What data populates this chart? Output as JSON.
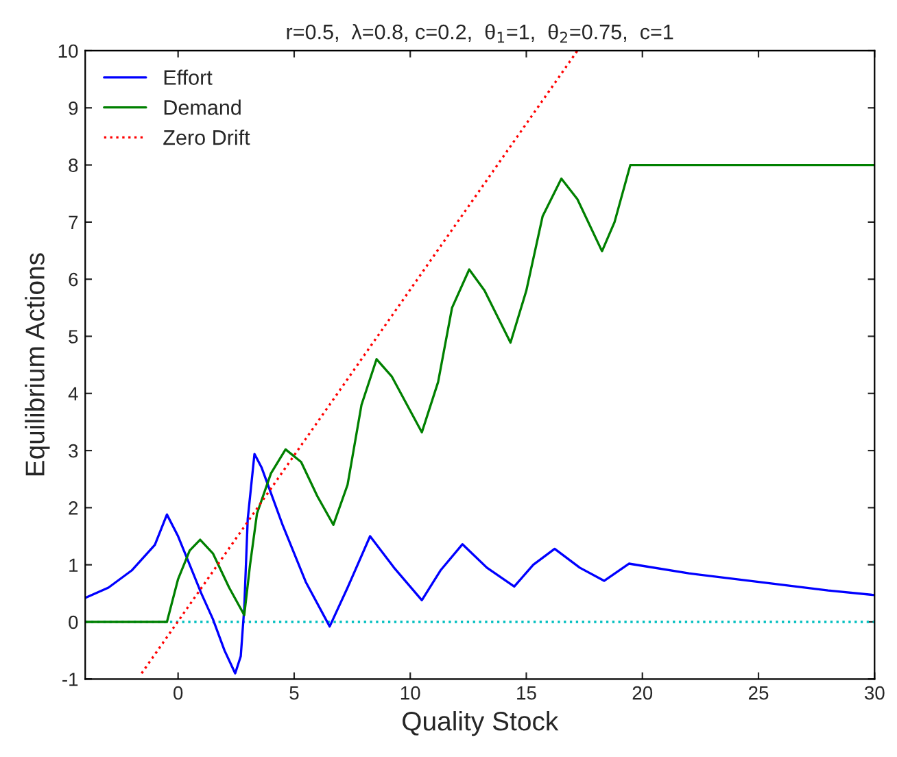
{
  "chart_data": {
    "type": "line",
    "title": "r=0.5,  λ=0.8, c=0.2,  θ$_{1}$=1,  θ$_{2}$=0.75,  c=1",
    "xlabel": "Quality Stock",
    "ylabel": "Equilibrium Actions",
    "xlim": [
      -4,
      30
    ],
    "ylim": [
      -1,
      10
    ],
    "xticks": [
      0,
      5,
      10,
      15,
      20,
      25,
      30
    ],
    "yticks": [
      -1,
      0,
      1,
      2,
      3,
      4,
      5,
      6,
      7,
      8,
      9,
      10
    ],
    "grid": false,
    "legend": "top left",
    "ref_lines": [
      {
        "axis": "y",
        "value": 0,
        "label": null,
        "color": "#00bfbf",
        "line_style": "dotted"
      }
    ],
    "series": [
      {
        "name": "Effort",
        "color": "#0000ff",
        "line_style": "solid",
        "x": [
          -4,
          -3,
          -2,
          -1,
          -0.48,
          0,
          0.5,
          1,
          1.5,
          2,
          2.46,
          2.7,
          2.85,
          3.0,
          3.29,
          3.6,
          4.5,
          5.5,
          6.53,
          7.3,
          8.27,
          9.3,
          10.5,
          11.3,
          12.25,
          13.3,
          14.48,
          15.3,
          16.22,
          17.3,
          18.35,
          19.42,
          22,
          25,
          28,
          30
        ],
        "values": [
          0.42,
          0.6,
          0.9,
          1.35,
          1.88,
          1.5,
          1.0,
          0.5,
          0.05,
          -0.5,
          -0.9,
          -0.6,
          0.24,
          1.8,
          2.94,
          2.7,
          1.7,
          0.7,
          -0.08,
          0.6,
          1.5,
          0.95,
          0.38,
          0.9,
          1.36,
          0.95,
          0.62,
          1.0,
          1.28,
          0.95,
          0.72,
          1.02,
          0.85,
          0.7,
          0.55,
          0.47
        ]
      },
      {
        "name": "Demand",
        "color": "#008000",
        "line_style": "solid",
        "x": [
          -4,
          -0.48,
          0,
          0.5,
          0.95,
          1.5,
          2.2,
          2.85,
          3.1,
          3.4,
          4.0,
          4.63,
          5.3,
          6.0,
          6.69,
          7.3,
          7.9,
          8.55,
          9.2,
          10.5,
          11.2,
          11.8,
          12.54,
          13.2,
          14.32,
          15.0,
          15.7,
          16.51,
          17.2,
          18.26,
          18.8,
          19.48,
          30
        ],
        "values": [
          0,
          0,
          0.75,
          1.25,
          1.44,
          1.2,
          0.6,
          0.12,
          1.0,
          1.9,
          2.6,
          3.02,
          2.8,
          2.2,
          1.7,
          2.4,
          3.8,
          4.6,
          4.3,
          3.32,
          4.2,
          5.5,
          6.17,
          5.8,
          4.89,
          5.8,
          7.1,
          7.76,
          7.4,
          6.49,
          7.0,
          8,
          8
        ]
      },
      {
        "name": "Zero Drift",
        "color": "#ff0000",
        "line_style": "dotted",
        "x": [
          -1.57,
          17.2
        ],
        "values": [
          -0.9,
          10
        ]
      }
    ]
  }
}
